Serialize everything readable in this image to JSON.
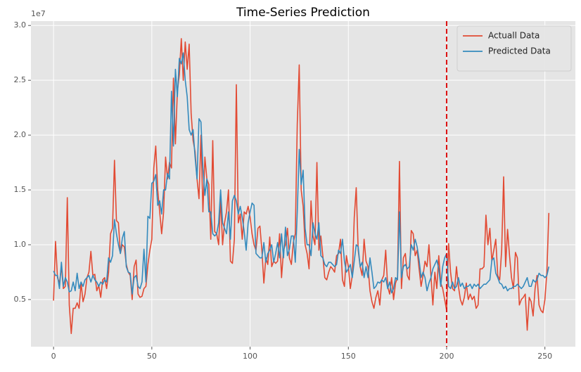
{
  "chart_data": {
    "type": "line",
    "title": "Time-Series Prediction",
    "y_offset_label": "1e7",
    "x": [
      0,
      1,
      2,
      3,
      4,
      5,
      6,
      7,
      8,
      9,
      10,
      11,
      12,
      13,
      14,
      15,
      16,
      17,
      18,
      19,
      20,
      21,
      22,
      23,
      24,
      25,
      26,
      27,
      28,
      29,
      30,
      31,
      32,
      33,
      34,
      35,
      36,
      37,
      38,
      39,
      40,
      41,
      42,
      43,
      44,
      45,
      46,
      47,
      48,
      49,
      50,
      51,
      52,
      53,
      54,
      55,
      56,
      57,
      58,
      59,
      60,
      61,
      62,
      63,
      64,
      65,
      66,
      67,
      68,
      69,
      70,
      71,
      72,
      73,
      74,
      75,
      76,
      77,
      78,
      79,
      80,
      81,
      82,
      83,
      84,
      85,
      86,
      87,
      88,
      89,
      90,
      91,
      92,
      93,
      94,
      95,
      96,
      97,
      98,
      99,
      100,
      101,
      102,
      103,
      104,
      105,
      106,
      107,
      108,
      109,
      110,
      111,
      112,
      113,
      114,
      115,
      116,
      117,
      118,
      119,
      120,
      121,
      122,
      123,
      124,
      125,
      126,
      127,
      128,
      129,
      130,
      131,
      132,
      133,
      134,
      135,
      136,
      137,
      138,
      139,
      140,
      141,
      142,
      143,
      144,
      145,
      146,
      147,
      148,
      149,
      150,
      151,
      152,
      153,
      154,
      155,
      156,
      157,
      158,
      159,
      160,
      161,
      162,
      163,
      164,
      165,
      166,
      167,
      168,
      169,
      170,
      171,
      172,
      173,
      174,
      175,
      176,
      177,
      178,
      179,
      180,
      181,
      182,
      183,
      184,
      185,
      186,
      187,
      188,
      189,
      190,
      191,
      192,
      193,
      194,
      195,
      196,
      197,
      198,
      199,
      200,
      201,
      202,
      203,
      204,
      205,
      206,
      207,
      208,
      209,
      210,
      211,
      212,
      213,
      214,
      215,
      216,
      217,
      218,
      219,
      220,
      221,
      222,
      223,
      224,
      225,
      226,
      227,
      228,
      229,
      230,
      231,
      232,
      233,
      234,
      235,
      236,
      237,
      238,
      239,
      240,
      241,
      242,
      243,
      244,
      245,
      246,
      247,
      248,
      249,
      250,
      251,
      252
    ],
    "series": [
      {
        "name": "Actuall Data",
        "color": "#E24A33",
        "values": [
          0.49,
          1.03,
          0.7,
          0.65,
          0.8,
          0.6,
          0.62,
          1.43,
          0.45,
          0.19,
          0.42,
          0.42,
          0.47,
          0.42,
          0.65,
          0.48,
          0.55,
          0.7,
          0.75,
          0.94,
          0.72,
          0.73,
          0.58,
          0.63,
          0.52,
          0.68,
          0.7,
          0.6,
          0.75,
          1.1,
          1.15,
          1.77,
          1.22,
          1.2,
          0.92,
          1.0,
          0.98,
          0.82,
          0.75,
          0.72,
          0.5,
          0.8,
          0.86,
          0.55,
          0.52,
          0.53,
          0.6,
          0.62,
          0.82,
          0.95,
          1.05,
          1.7,
          1.9,
          1.5,
          1.3,
          1.1,
          1.3,
          1.8,
          1.6,
          1.75,
          1.7,
          2.52,
          1.92,
          2.4,
          2.55,
          2.88,
          2.5,
          2.85,
          2.6,
          2.83,
          2.2,
          1.95,
          1.85,
          1.6,
          1.42,
          2.0,
          1.3,
          1.8,
          1.6,
          1.55,
          1.05,
          1.95,
          1.12,
          1.1,
          1.0,
          1.42,
          1.0,
          1.2,
          1.3,
          1.5,
          0.85,
          0.83,
          1.05,
          2.46,
          1.2,
          1.28,
          1.05,
          1.3,
          1.28,
          1.35,
          1.25,
          1.1,
          1.0,
          0.95,
          1.15,
          1.17,
          0.95,
          0.65,
          0.88,
          0.82,
          1.07,
          0.8,
          0.85,
          0.83,
          0.85,
          1.1,
          0.7,
          0.95,
          1.0,
          1.15,
          0.88,
          0.82,
          1.02,
          1.1,
          2.1,
          2.64,
          1.5,
          1.35,
          1.0,
          0.92,
          0.78,
          1.4,
          1.08,
          1.0,
          1.75,
          0.95,
          1.08,
          0.9,
          0.7,
          0.68,
          0.75,
          0.8,
          0.78,
          0.75,
          0.9,
          0.92,
          1.05,
          0.68,
          0.62,
          0.9,
          0.8,
          0.6,
          0.72,
          1.25,
          1.52,
          0.95,
          0.8,
          0.72,
          1.05,
          0.85,
          0.8,
          0.58,
          0.48,
          0.42,
          0.52,
          0.58,
          0.45,
          0.68,
          0.72,
          0.95,
          0.62,
          0.55,
          0.7,
          0.5,
          0.65,
          0.7,
          1.76,
          0.6,
          0.88,
          0.92,
          0.72,
          0.68,
          1.13,
          1.1,
          0.9,
          0.95,
          0.78,
          0.62,
          0.72,
          0.85,
          0.8,
          1.0,
          0.72,
          0.45,
          0.75,
          0.6,
          0.9,
          0.65,
          0.6,
          0.5,
          0.4,
          1.01,
          0.75,
          0.6,
          0.58,
          0.8,
          0.62,
          0.5,
          0.45,
          0.52,
          0.65,
          0.5,
          0.55,
          0.5,
          0.53,
          0.42,
          0.45,
          0.78,
          0.78,
          0.8,
          1.27,
          1.0,
          1.15,
          0.85,
          0.95,
          1.05,
          0.72,
          0.68,
          0.95,
          1.62,
          0.8,
          1.14,
          0.9,
          0.7,
          0.6,
          0.93,
          0.88,
          0.45,
          0.5,
          0.52,
          0.55,
          0.22,
          0.52,
          0.48,
          0.35,
          0.6,
          0.72,
          0.45,
          0.4,
          0.38,
          0.5,
          0.75,
          1.29
        ]
      },
      {
        "name": "Predicted Data",
        "color": "#348ABD",
        "values": [
          0.76,
          0.72,
          0.72,
          0.6,
          0.84,
          0.62,
          0.7,
          0.66,
          0.57,
          0.58,
          0.66,
          0.58,
          0.74,
          0.6,
          0.66,
          0.62,
          0.68,
          0.7,
          0.72,
          0.66,
          0.72,
          0.68,
          0.66,
          0.62,
          0.66,
          0.64,
          0.68,
          0.66,
          0.88,
          0.84,
          0.9,
          1.23,
          1.1,
          1.0,
          0.92,
          1.06,
          1.12,
          0.8,
          0.75,
          0.74,
          0.55,
          0.7,
          0.72,
          0.62,
          0.6,
          0.66,
          0.96,
          0.66,
          1.26,
          1.24,
          1.56,
          1.58,
          1.64,
          1.36,
          1.4,
          1.28,
          1.5,
          1.5,
          1.65,
          1.6,
          2.4,
          1.9,
          2.6,
          2.35,
          2.7,
          2.65,
          2.75,
          2.5,
          2.35,
          2.05,
          2.0,
          2.05,
          1.8,
          1.6,
          2.15,
          2.12,
          1.7,
          1.45,
          1.6,
          1.3,
          1.3,
          1.1,
          1.08,
          1.1,
          1.2,
          1.5,
          1.2,
          1.15,
          1.1,
          1.3,
          1.05,
          1.4,
          1.45,
          1.4,
          1.28,
          1.35,
          1.25,
          1.12,
          0.95,
          1.2,
          1.3,
          1.38,
          1.36,
          0.92,
          0.9,
          0.88,
          0.88,
          1.02,
          0.84,
          0.92,
          0.95,
          1.0,
          0.84,
          0.92,
          1.02,
          0.88,
          1.1,
          0.88,
          1.16,
          0.9,
          0.96,
          1.08,
          1.08,
          0.84,
          1.3,
          1.87,
          1.55,
          1.68,
          1.15,
          1.0,
          1.0,
          0.9,
          1.2,
          1.1,
          1.05,
          1.2,
          0.9,
          0.88,
          0.82,
          0.8,
          0.84,
          0.84,
          0.82,
          0.8,
          0.82,
          0.95,
          0.92,
          1.05,
          0.85,
          0.75,
          0.78,
          0.82,
          0.7,
          0.85,
          1.0,
          0.98,
          0.8,
          0.84,
          0.7,
          0.8,
          0.7,
          0.88,
          0.75,
          0.6,
          0.62,
          0.66,
          0.65,
          0.68,
          0.66,
          0.7,
          0.6,
          0.66,
          0.56,
          0.6,
          0.7,
          0.68,
          1.3,
          0.7,
          0.8,
          0.82,
          0.78,
          0.8,
          1.0,
          0.95,
          1.05,
          0.98,
          0.86,
          0.7,
          0.75,
          0.7,
          0.58,
          0.65,
          0.7,
          0.78,
          0.82,
          0.86,
          0.78,
          0.62,
          0.8,
          0.88,
          0.92,
          0.62,
          0.6,
          0.66,
          0.6,
          0.62,
          0.7,
          0.62,
          0.65,
          0.6,
          0.62,
          0.62,
          0.64,
          0.6,
          0.64,
          0.62,
          0.64,
          0.6,
          0.62,
          0.64,
          0.64,
          0.66,
          0.68,
          0.86,
          0.88,
          0.74,
          0.7,
          0.65,
          0.64,
          0.6,
          0.62,
          0.58,
          0.6,
          0.6,
          0.62,
          0.62,
          0.64,
          0.62,
          0.6,
          0.62,
          0.66,
          0.7,
          0.62,
          0.62,
          0.68,
          0.66,
          0.68,
          0.74,
          0.72,
          0.72,
          0.7,
          0.72,
          0.8
        ]
      }
    ],
    "xlim": [
      -11.5,
      265.5
    ],
    "ylim": [
      0.07,
      3.04
    ],
    "xticks": [
      0,
      50,
      100,
      150,
      200,
      250
    ],
    "yticks": [
      0.5,
      {
        "value": 1,
        "label": "1.0"
      },
      1.5,
      {
        "value": 2,
        "label": "2.0"
      },
      2.5,
      {
        "value": 3,
        "label": "3.0"
      }
    ],
    "grid": true,
    "legend": "upper right",
    "vlines": [
      {
        "x": 200,
        "color": "#dd1111",
        "style": "dashed"
      }
    ]
  }
}
